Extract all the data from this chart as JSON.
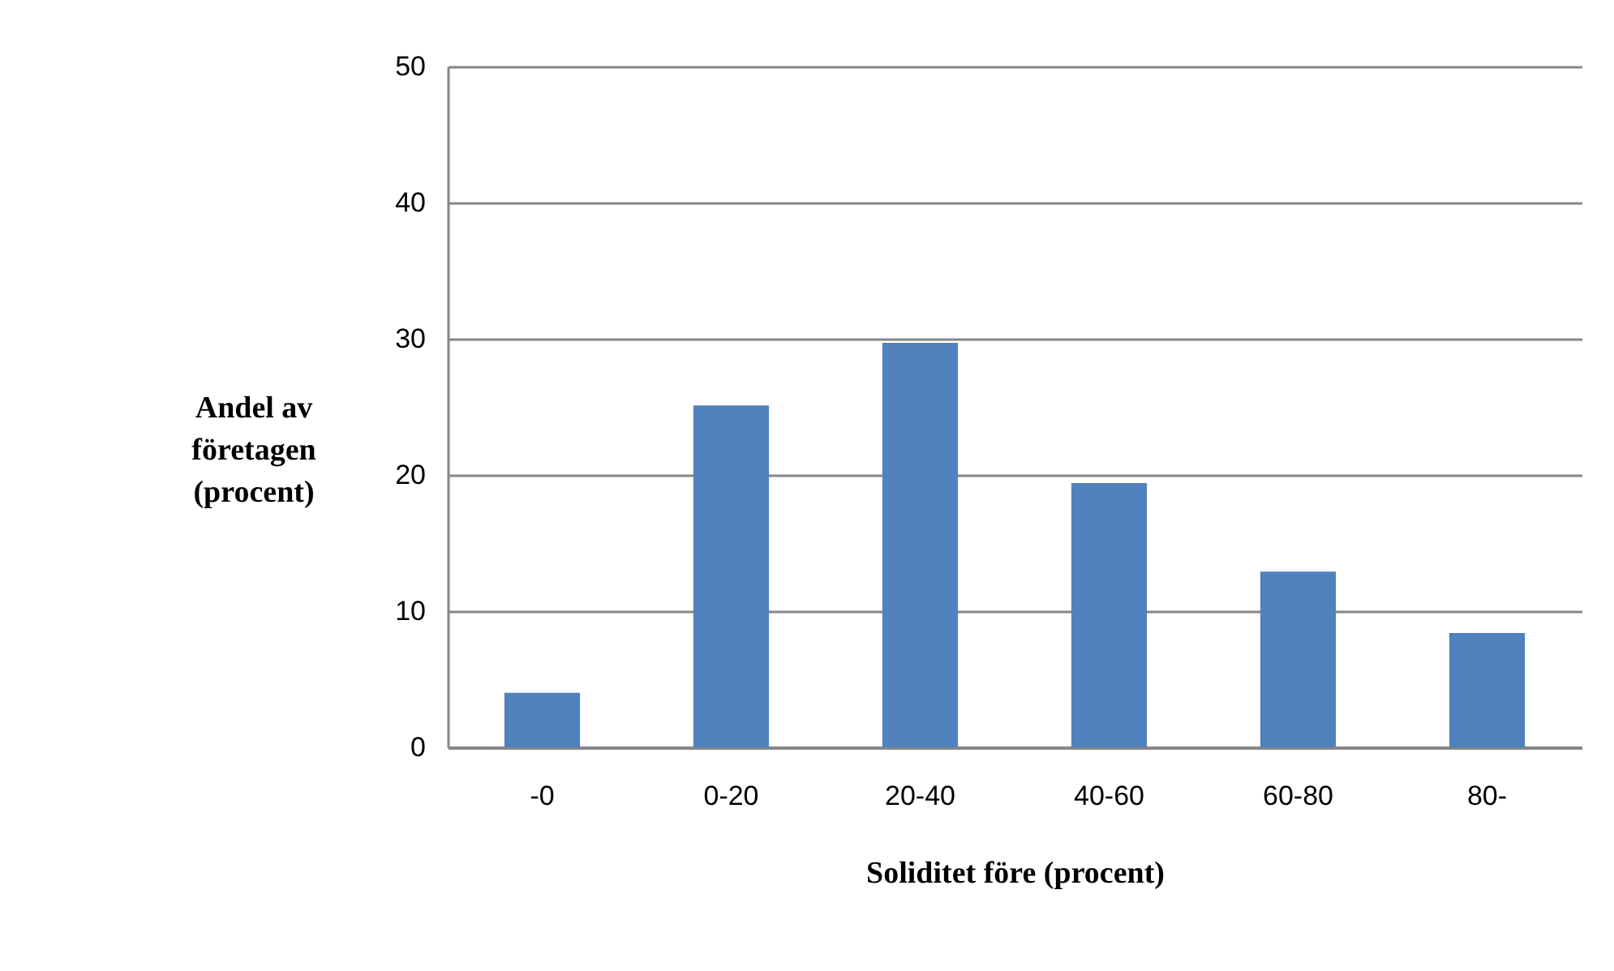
{
  "chart_data": {
    "type": "bar",
    "xlabel": "Soliditet före (procent)",
    "ylabel": "Andel av företagen (procent)",
    "categories": [
      "-0",
      "0-20",
      "20-40",
      "40-60",
      "60-80",
      "80-"
    ],
    "values": [
      4.0,
      25.1,
      29.7,
      19.4,
      12.9,
      8.4
    ],
    "color": "#4f81bd",
    "ylim": [
      0,
      50
    ],
    "yticks": [
      0,
      10,
      20,
      30,
      40,
      50
    ],
    "grid": "y",
    "legend": false
  }
}
